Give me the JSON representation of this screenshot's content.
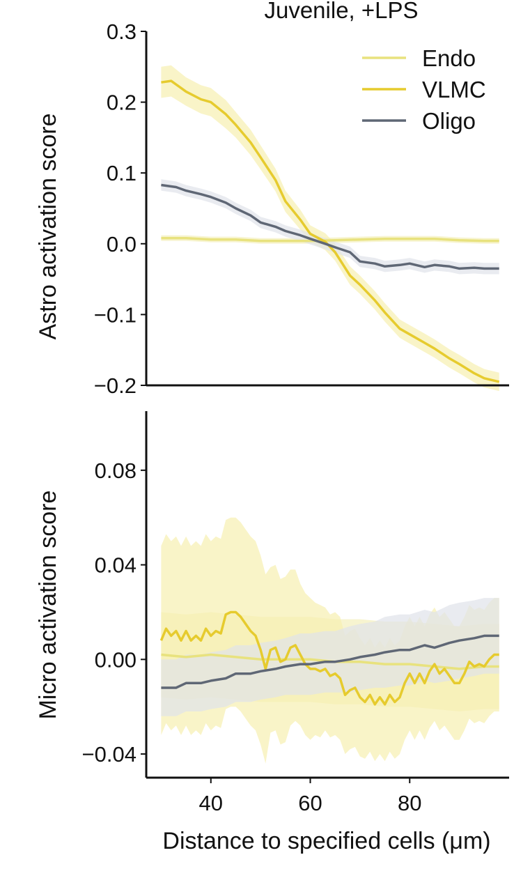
{
  "chart_data": [
    {
      "type": "line",
      "panel": "top",
      "title": "Juvenile, +LPS",
      "ylabel": "Astro activation score",
      "xlabel": "",
      "xlim": [
        27,
        100
      ],
      "ylim": [
        -0.2,
        0.3
      ],
      "yticks": [
        -0.2,
        -0.1,
        0.0,
        0.1,
        0.2,
        0.3
      ],
      "ytick_labels": [
        "−0.2",
        "−0.1",
        "0.0",
        "0.1",
        "0.2",
        "0.3"
      ],
      "legend": {
        "placement": "top-right",
        "entries": [
          "Endo",
          "VLMC",
          "Oligo"
        ]
      },
      "grid": false,
      "series": [
        {
          "name": "Endo",
          "color": "#e8e27e",
          "band_color": "#f3f0bc",
          "x": [
            30,
            35,
            40,
            45,
            50,
            55,
            60,
            65,
            70,
            75,
            80,
            85,
            90,
            95,
            98
          ],
          "y": [
            0.008,
            0.008,
            0.006,
            0.006,
            0.004,
            0.004,
            0.004,
            0.005,
            0.006,
            0.007,
            0.007,
            0.007,
            0.005,
            0.004,
            0.004
          ],
          "err": [
            0.004,
            0.004,
            0.004,
            0.004,
            0.004,
            0.004,
            0.004,
            0.004,
            0.004,
            0.004,
            0.004,
            0.004,
            0.004,
            0.004,
            0.004
          ]
        },
        {
          "name": "VLMC",
          "color": "#e6cb2e",
          "band_color": "#f7f0b0",
          "x": [
            30,
            32,
            35,
            38,
            40,
            43,
            45,
            48,
            50,
            53,
            55,
            58,
            60,
            63,
            65,
            68,
            70,
            73,
            75,
            78,
            80,
            83,
            85,
            88,
            90,
            93,
            95,
            98
          ],
          "y": [
            0.228,
            0.23,
            0.215,
            0.204,
            0.2,
            0.183,
            0.168,
            0.143,
            0.122,
            0.09,
            0.06,
            0.034,
            0.014,
            0.003,
            -0.012,
            -0.045,
            -0.058,
            -0.08,
            -0.097,
            -0.12,
            -0.128,
            -0.14,
            -0.148,
            -0.162,
            -0.17,
            -0.183,
            -0.19,
            -0.195
          ],
          "err": [
            0.022,
            0.022,
            0.02,
            0.02,
            0.02,
            0.02,
            0.018,
            0.018,
            0.017,
            0.016,
            0.015,
            0.014,
            0.012,
            0.012,
            0.012,
            0.013,
            0.013,
            0.013,
            0.013,
            0.013,
            0.013,
            0.013,
            0.013,
            0.013,
            0.013,
            0.013,
            0.013,
            0.013
          ]
        },
        {
          "name": "Oligo",
          "color": "#5f6775",
          "band_color": "#dfe2ea",
          "x": [
            30,
            33,
            35,
            38,
            40,
            43,
            45,
            48,
            50,
            53,
            55,
            58,
            60,
            63,
            65,
            68,
            70,
            73,
            75,
            78,
            80,
            83,
            85,
            88,
            90,
            93,
            95,
            98
          ],
          "y": [
            0.083,
            0.08,
            0.075,
            0.07,
            0.066,
            0.058,
            0.05,
            0.04,
            0.03,
            0.024,
            0.018,
            0.012,
            0.007,
            0.0,
            -0.005,
            -0.012,
            -0.025,
            -0.028,
            -0.032,
            -0.03,
            -0.028,
            -0.033,
            -0.03,
            -0.032,
            -0.035,
            -0.034,
            -0.035,
            -0.035
          ],
          "err": [
            0.008,
            0.008,
            0.008,
            0.008,
            0.008,
            0.008,
            0.008,
            0.008,
            0.008,
            0.008,
            0.008,
            0.008,
            0.008,
            0.008,
            0.008,
            0.008,
            0.008,
            0.008,
            0.008,
            0.008,
            0.008,
            0.008,
            0.008,
            0.008,
            0.008,
            0.008,
            0.008,
            0.008
          ]
        }
      ]
    },
    {
      "type": "line",
      "panel": "bottom",
      "title": "",
      "ylabel": "Micro activation score",
      "xlabel": "Distance to specified cells (μm)",
      "xlim": [
        27,
        100
      ],
      "ylim": [
        -0.05,
        0.105
      ],
      "yticks": [
        -0.04,
        0.0,
        0.04,
        0.08
      ],
      "ytick_labels": [
        "−0.04",
        "0.00",
        "0.04",
        "0.08"
      ],
      "xticks": [
        40,
        60,
        80
      ],
      "xtick_labels": [
        "40",
        "60",
        "80"
      ],
      "grid": false,
      "series": [
        {
          "name": "Endo",
          "color": "#e8e27e",
          "band_color": "#f3f0bc",
          "x": [
            30,
            35,
            40,
            45,
            50,
            55,
            60,
            65,
            70,
            75,
            80,
            85,
            90,
            95,
            98
          ],
          "y": [
            0.002,
            0.001,
            0.002,
            0.001,
            0.0,
            0.0,
            0.0,
            -0.001,
            -0.001,
            -0.002,
            -0.002,
            -0.003,
            -0.004,
            -0.003,
            -0.003
          ],
          "err": [
            0.018,
            0.018,
            0.018,
            0.018,
            0.018,
            0.018,
            0.018,
            0.018,
            0.018,
            0.018,
            0.018,
            0.018,
            0.018,
            0.018,
            0.018
          ]
        },
        {
          "name": "VLMC",
          "color": "#e6cb2e",
          "band_color": "#f7f0b0",
          "x": [
            30,
            31,
            32,
            33,
            34,
            35,
            36,
            37,
            38,
            39,
            40,
            41,
            42,
            43,
            44,
            45,
            46,
            47,
            48,
            49,
            50,
            51,
            52,
            53,
            54,
            55,
            56,
            57,
            58,
            59,
            60,
            61,
            62,
            63,
            64,
            65,
            66,
            67,
            68,
            69,
            70,
            71,
            72,
            73,
            74,
            75,
            76,
            77,
            78,
            79,
            80,
            81,
            82,
            83,
            84,
            85,
            86,
            87,
            88,
            89,
            90,
            91,
            92,
            93,
            94,
            95,
            96,
            97,
            98
          ],
          "y": [
            0.008,
            0.013,
            0.01,
            0.012,
            0.008,
            0.012,
            0.008,
            0.01,
            0.008,
            0.013,
            0.01,
            0.012,
            0.011,
            0.019,
            0.02,
            0.02,
            0.018,
            0.015,
            0.012,
            0.01,
            0.004,
            -0.004,
            0.004,
            0.005,
            -0.001,
            0.0,
            0.005,
            0.006,
            0.002,
            -0.002,
            -0.004,
            -0.004,
            -0.005,
            -0.004,
            -0.007,
            -0.006,
            -0.008,
            -0.015,
            -0.013,
            -0.012,
            -0.016,
            -0.018,
            -0.015,
            -0.019,
            -0.016,
            -0.019,
            -0.015,
            -0.018,
            -0.016,
            -0.01,
            -0.006,
            -0.01,
            -0.006,
            -0.01,
            -0.005,
            -0.002,
            -0.006,
            -0.004,
            -0.007,
            -0.01,
            -0.01,
            -0.006,
            -0.001,
            -0.003,
            -0.002,
            -0.003,
            0.0,
            0.002,
            0.002
          ],
          "err": [
            0.04,
            0.04,
            0.04,
            0.04,
            0.04,
            0.04,
            0.04,
            0.04,
            0.04,
            0.04,
            0.04,
            0.04,
            0.04,
            0.04,
            0.04,
            0.04,
            0.04,
            0.04,
            0.04,
            0.04,
            0.04,
            0.04,
            0.035,
            0.035,
            0.035,
            0.035,
            0.033,
            0.032,
            0.03,
            0.03,
            0.03,
            0.028,
            0.028,
            0.026,
            0.026,
            0.026,
            0.026,
            0.025,
            0.025,
            0.025,
            0.025,
            0.024,
            0.024,
            0.024,
            0.024,
            0.024,
            0.024,
            0.024,
            0.024,
            0.024,
            0.024,
            0.024,
            0.024,
            0.024,
            0.024,
            0.024,
            0.024,
            0.024,
            0.024,
            0.024,
            0.024,
            0.024,
            0.024,
            0.024,
            0.024,
            0.024,
            0.024,
            0.024,
            0.024
          ]
        },
        {
          "name": "Oligo",
          "color": "#5f6775",
          "band_color": "#dfe2ea",
          "x": [
            30,
            33,
            35,
            38,
            40,
            43,
            45,
            48,
            50,
            53,
            55,
            58,
            60,
            63,
            65,
            68,
            70,
            73,
            75,
            78,
            80,
            83,
            85,
            88,
            90,
            93,
            95,
            98
          ],
          "y": [
            -0.012,
            -0.012,
            -0.01,
            -0.01,
            -0.009,
            -0.008,
            -0.006,
            -0.006,
            -0.005,
            -0.004,
            -0.003,
            -0.002,
            -0.002,
            -0.001,
            -0.001,
            0.0,
            0.001,
            0.002,
            0.003,
            0.004,
            0.004,
            0.006,
            0.005,
            0.007,
            0.008,
            0.009,
            0.01,
            0.01
          ],
          "err": [
            0.012,
            0.012,
            0.012,
            0.012,
            0.012,
            0.012,
            0.012,
            0.012,
            0.012,
            0.012,
            0.012,
            0.013,
            0.013,
            0.013,
            0.013,
            0.014,
            0.014,
            0.014,
            0.015,
            0.015,
            0.015,
            0.015,
            0.015,
            0.016,
            0.016,
            0.016,
            0.016,
            0.016
          ]
        }
      ]
    }
  ]
}
